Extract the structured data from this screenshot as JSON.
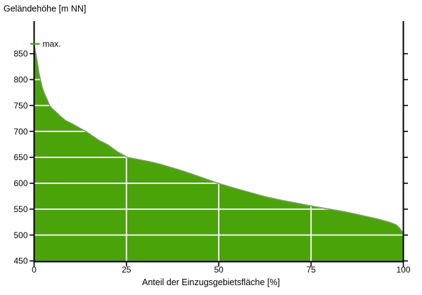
{
  "chart_data": {
    "type": "area",
    "title": "Geländehöhe [m NN]",
    "xlabel": "Anteil der Einzugsgebietsfläche [%]",
    "ylabel": "Geländehöhe [m NN]",
    "max_label": "max.",
    "max_elevation_m": 869,
    "min_elevation_m": 500,
    "x_ticks": [
      0,
      25,
      50,
      75,
      100
    ],
    "y_ticks": [
      450,
      500,
      550,
      600,
      650,
      700,
      750,
      800,
      850
    ],
    "xlim": [
      0,
      100
    ],
    "ylim": [
      450,
      912
    ],
    "grid": "white gridlines drawn over filled area only",
    "legend": "none",
    "series": [
      {
        "name": "hypsometric-curve",
        "x": [
          0,
          0.25,
          0.55,
          0.9,
          1.25,
          1.7,
          2.2,
          2.8,
          3.5,
          4.2,
          5,
          6,
          7,
          8.5,
          10.5,
          12.7,
          14,
          17.5,
          20,
          22.5,
          25.2,
          28,
          31,
          34,
          37.8,
          41,
          45,
          49.8,
          54,
          58,
          62.6,
          67,
          70.8,
          75,
          80,
          84,
          88.6,
          93,
          96,
          98,
          99,
          99.6,
          100
        ],
        "y": [
          869,
          858,
          847,
          832,
          815,
          800,
          785,
          773,
          762,
          750,
          743,
          737,
          730,
          721,
          714,
          705,
          700,
          683,
          674,
          661,
          650,
          646,
          642,
          637,
          629,
          622,
          612,
          600,
          591,
          583,
          574,
          567,
          562,
          556,
          550,
          545,
          538,
          531,
          525,
          520,
          513,
          507,
          500
        ]
      }
    ],
    "colors": {
      "area_fill": "#4BA30A",
      "curve_border": "#8B8B8B",
      "grid": "#FFFFFF",
      "axis": "#000000",
      "text": "#000000",
      "max_marker": "#3FA30A"
    }
  }
}
